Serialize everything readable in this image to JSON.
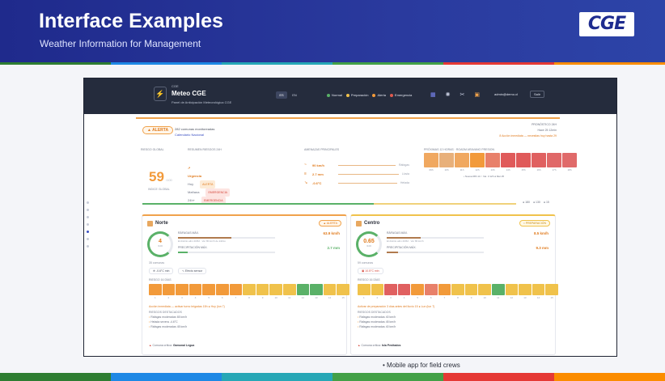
{
  "slide": {
    "title": "Interface Examples",
    "subtitle": "Weather Information for Management",
    "logo": "CGE",
    "caption": "Mobile app for field crews",
    "strip_colors": [
      "#2e7d32",
      "#1e88e5",
      "#26a7b6",
      "#43a047",
      "#e53935",
      "#fb8c00"
    ]
  },
  "app": {
    "code": "CGE",
    "name": "Meteo CGE",
    "description": "Panel de Anticipación Meteorológica CGE",
    "lang": {
      "es": "ES",
      "en": "EN"
    },
    "legend": [
      {
        "label": "Normal",
        "color": "#5ab168"
      },
      {
        "label": "Preparación",
        "color": "#f0c24b"
      },
      {
        "label": "Alerta",
        "color": "#f29a3a"
      },
      {
        "label": "Emergencia",
        "color": "#e05a4e"
      }
    ],
    "icons": [
      "grid-icon",
      "settings-icon",
      "tools-icon",
      "briefcase-icon"
    ],
    "user": "admin@demo.cl",
    "exit_label": "Salir"
  },
  "summary": {
    "status": "ALERTA",
    "line1": "282 comunas monitoreadas",
    "line2": "Calendario Nacional",
    "right": [
      "PRONÓSTICO 24H",
      "Hace 25 12min",
      "8 Acción inmediata — necesitas hoy hasta 29"
    ],
    "score_label": "RIESGO GLOBAL",
    "score": "59",
    "score_unit": "/100",
    "score_caption": "INDICE GLOBAL",
    "conditions_label": "RESUMEN RIESGOS 24H",
    "conditions_title": "Urgencia",
    "conditions": [
      {
        "label": "Hoy",
        "tag": "ALERTA"
      },
      {
        "label": "Mañana",
        "tag": "EMERGENCIA"
      },
      {
        "label": "24h+",
        "tag": "EMERGENCIA"
      }
    ],
    "metrics_label": "AMENAZAS PRINCIPALES",
    "metrics": [
      {
        "icon": "~",
        "value": "90 km/h",
        "note": "Ráfagas"
      },
      {
        "icon": "≡",
        "value": "2.7 mm",
        "note": "Lluvia"
      },
      {
        "icon": "↘",
        "value": "-0.6°C",
        "note": "Helada"
      }
    ],
    "hourly_label": "PRÓXIMAS 12 HORAS · ROADM ARAVANO PRESION",
    "hourly_colors": [
      "#f0a860",
      "#e8b07a",
      "#f0a860",
      "#f29a3a",
      "#e8806a",
      "#e05a5a",
      "#e05a5a",
      "#e06060",
      "#e06868",
      "#e06a6a"
    ],
    "hourly_labels": [
      "09h",
      "10h",
      "11h",
      "12h",
      "13h",
      "14h",
      "15h",
      "16h",
      "17h",
      "18h"
    ],
    "hourly_note": "• Nueva 08h 14  ○ Vel. 3 12h  ● Met 25",
    "progress": 0.62,
    "counts": [
      "● 180",
      "● 130",
      "● 15"
    ]
  },
  "regions": [
    {
      "name": "Norte",
      "status": "ALERTA",
      "gauge_value": "4",
      "gauge_unit": "/100",
      "wind_label": "RÁFAGAS MÁX.",
      "wind_value": "63.9 km/h",
      "wind_sub": "El distrito alim 20/62 · Ver 80 km/h de tráfico",
      "wind_fill": 0.55,
      "rain_label": "PRECIPITACIÓN MÁX.",
      "rain_value": "2.7 mm",
      "rain_fill": 0.1,
      "sector_count": "35 comunas",
      "chips": [
        "-0.6°C min",
        "Efecto sensor"
      ],
      "hours_label": "RIESGO 16 DÍAS",
      "hours_colors": [
        "#f29a3a",
        "#f29a3a",
        "#f29a3a",
        "#f29a3a",
        "#f29a3a",
        "#f29a3a",
        "#f29a3a",
        "#f0c24b",
        "#f0c24b",
        "#f0c24b",
        "#f0c24b",
        "#5ab168",
        "#5ab168",
        "#f0c24b",
        "#f0c24b"
      ],
      "note": "Acción inmediata — activar turno brigadas 15h ● Hoy (lun 7)",
      "list_label": "RIESGOS DESTACADOS",
      "list": [
        "Ráfagas moderadas 65 km/h",
        "Helada severa -4.6°C",
        "Ráfagas moderadas 45 km/h"
      ],
      "footer_label": "Comuna crítica:",
      "footer_value": "Gamonal Legua"
    },
    {
      "name": "Centro",
      "status": "PREPARACIÓN",
      "gauge_value": "0.65",
      "gauge_unit": "/100",
      "wind_label": "RÁFAGAS MÁX.",
      "wind_value": "8.5 km/h",
      "wind_sub": "El distrito alim 20/62 · Ver 80 km/h",
      "wind_fill": 0.35,
      "rain_label": "PRECIPITACIÓN MÁX.",
      "rain_value": "9.3 mm",
      "rain_fill": 0.12,
      "sector_count": "59 comunas",
      "chips": [
        "10.5°C min"
      ],
      "hours_label": "RIESGO 16 DÍAS",
      "hours_colors": [
        "#f0c24b",
        "#f0c24b",
        "#e06060",
        "#e06060",
        "#f29a3a",
        "#e8806a",
        "#f29a3a",
        "#f0c24b",
        "#f0c24b",
        "#f0c24b",
        "#5ab168",
        "#f0c24b",
        "#f0c24b",
        "#f0c24b",
        "#f0c24b"
      ],
      "note": "Activar de preparación 3 días antes del lluvio 15 ● Lun (lun 7)",
      "list_label": "RIESGOS DESTACADOS",
      "list": [
        "Ráfagas moderadas 40 km/h",
        "Ráfagas moderadas 45 km/h",
        "Ráfagas moderadas 40 km/h"
      ],
      "footer_label": "Comuna crítica:",
      "footer_value": "Isla Penitados"
    }
  ]
}
